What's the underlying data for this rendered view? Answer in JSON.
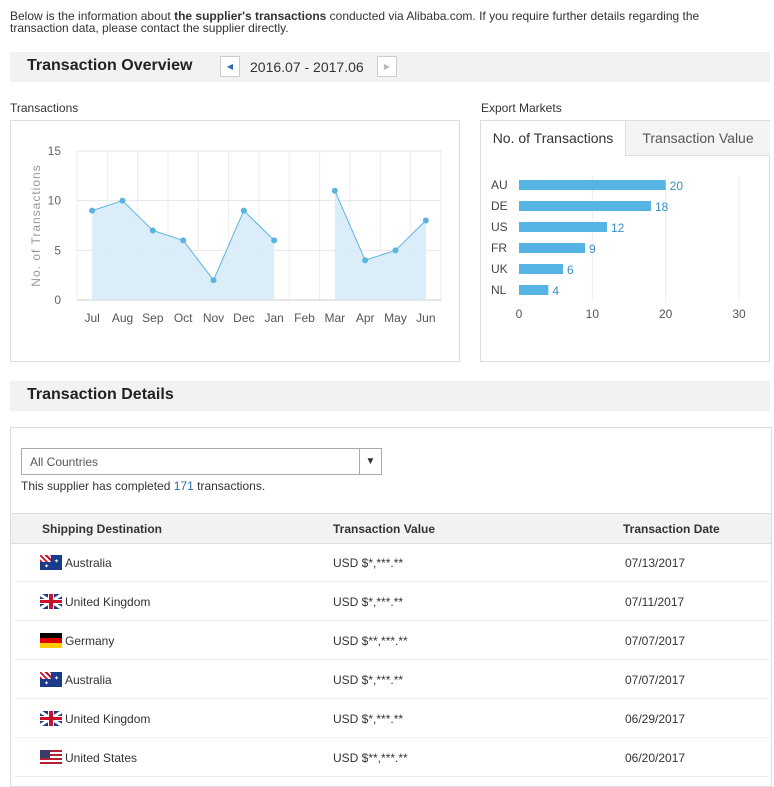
{
  "intro": {
    "pre": "Below is the information about ",
    "bold": "the supplier's transactions",
    "post": " conducted via Alibaba.com. If you require further details regarding the transaction data, please contact the supplier directly."
  },
  "overview": {
    "title": "Transaction Overview",
    "period": "2016.07 - 2017.06",
    "prev_icon": "caret-left-icon",
    "next_icon": "caret-right-icon"
  },
  "transactions_label": "Transactions",
  "export_label": "Export Markets",
  "export_tabs": [
    {
      "label": "No. of Transactions",
      "active": true
    },
    {
      "label": "Transaction Value",
      "active": false
    }
  ],
  "chart_data": [
    {
      "type": "area",
      "ylabel": "No. of Transactions",
      "categories": [
        "Jul",
        "Aug",
        "Sep",
        "Oct",
        "Nov",
        "Dec",
        "Jan",
        "Feb",
        "Mar",
        "Apr",
        "May",
        "Jun"
      ],
      "values": [
        9,
        10,
        7,
        6,
        2,
        9,
        6,
        null,
        11,
        4,
        5,
        8
      ],
      "ylim": [
        0,
        15
      ],
      "yticks": [
        0,
        5,
        10,
        15
      ],
      "grid": true,
      "color": "#5ab4e0"
    },
    {
      "type": "bar",
      "orientation": "horizontal",
      "categories": [
        "AU",
        "DE",
        "US",
        "FR",
        "UK",
        "NL"
      ],
      "values": [
        20,
        18,
        12,
        9,
        6,
        4
      ],
      "xlim": [
        0,
        30
      ],
      "xticks": [
        0,
        10,
        20,
        30
      ],
      "grid": true,
      "color": "#55b4e4"
    }
  ],
  "details": {
    "title": "Transaction Details",
    "filter": "All Countries",
    "count_pre": "This supplier has completed ",
    "count": "171",
    "count_post": " transactions.",
    "columns": [
      "Shipping Destination",
      "Transaction Value",
      "Transaction Date"
    ],
    "rows": [
      {
        "country": "Australia",
        "flag": "au",
        "value": "USD $*,***.**",
        "date": "07/13/2017"
      },
      {
        "country": "United Kingdom",
        "flag": "uk",
        "value": "USD $*,***.**",
        "date": "07/11/2017"
      },
      {
        "country": "Germany",
        "flag": "de",
        "value": "USD $**,***.**",
        "date": "07/07/2017"
      },
      {
        "country": "Australia",
        "flag": "au",
        "value": "USD $*,***.**",
        "date": "07/07/2017"
      },
      {
        "country": "United Kingdom",
        "flag": "uk",
        "value": "USD $*,***.**",
        "date": "06/29/2017"
      },
      {
        "country": "United States",
        "flag": "us",
        "value": "USD $**,***.**",
        "date": "06/20/2017"
      }
    ]
  },
  "colors": {
    "accent": "#5ab4e0",
    "link": "#2a6fb0"
  }
}
